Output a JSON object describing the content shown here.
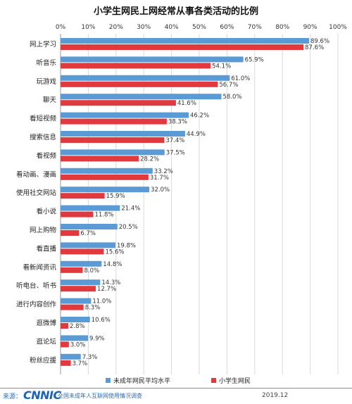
{
  "chart_data": {
    "type": "bar",
    "orientation": "horizontal",
    "title": "小学生网民上网经常从事各类活动的比例",
    "x_ticks": [
      "0%",
      "10%",
      "20%",
      "30%",
      "40%",
      "50%",
      "60%",
      "70%",
      "80%",
      "90%",
      "100%"
    ],
    "xlim": [
      0,
      100
    ],
    "grid": true,
    "legend_position": "bottom",
    "categories": [
      "网上学习",
      "听音乐",
      "玩游戏",
      "聊天",
      "看短视频",
      "搜索信息",
      "看视频",
      "看动画、漫画",
      "使用社交网站",
      "看小说",
      "网上购物",
      "看直播",
      "看新闻资讯",
      "听电台、听书",
      "进行内容创作",
      "逛微博",
      "逛论坛",
      "粉丝应援"
    ],
    "series": [
      {
        "name": "未成年网民平均水平",
        "color": "#5b9bd5",
        "values": [
          89.6,
          65.9,
          61.0,
          58.0,
          46.2,
          44.9,
          37.5,
          33.2,
          32.0,
          21.4,
          20.5,
          19.8,
          14.8,
          14.3,
          11.0,
          10.6,
          9.9,
          7.3
        ],
        "labels": [
          "89.6%",
          "65.9%",
          "61.0%",
          "58.0%",
          "46.2%",
          "44.9%",
          "37.5%",
          "33.2%",
          "32.0%",
          "21.4%",
          "20.5%",
          "19.8%",
          "14.8%",
          "14.3%",
          "11.0%",
          "10.6%",
          "9.9%",
          "7.3%"
        ]
      },
      {
        "name": "小学生网民",
        "color": "#e0393e",
        "values": [
          87.6,
          54.1,
          56.7,
          41.6,
          38.3,
          37.4,
          28.2,
          31.7,
          15.9,
          11.8,
          6.7,
          15.6,
          8.0,
          12.7,
          8.3,
          2.8,
          3.0,
          3.7
        ],
        "labels": [
          "87.6%",
          "54.1%",
          "56.7%",
          "41.6%",
          "38.3%",
          "37.4%",
          "28.2%",
          "31.7%",
          "15.9%",
          "11.8%",
          "6.7%",
          "15.6%",
          "8.0%",
          "12.7%",
          "8.3%",
          "2.8%",
          "3.0%",
          "3.7%"
        ]
      }
    ]
  },
  "footer": {
    "source_label": "来源：",
    "logo_text": "CNNIC",
    "org_text": "全国未成年人互联网使用情况调查",
    "date": "2019.12"
  }
}
